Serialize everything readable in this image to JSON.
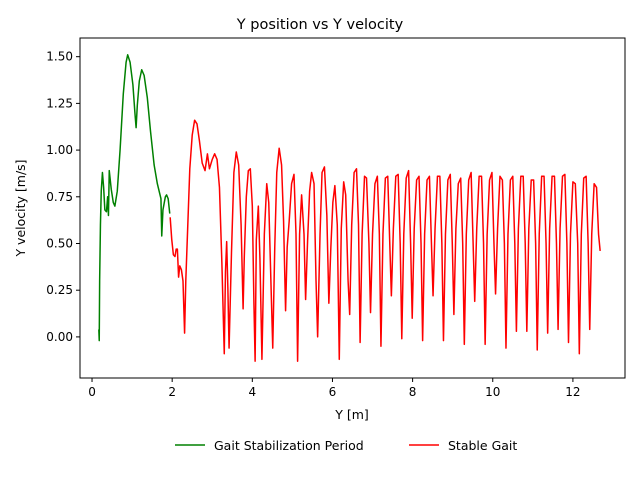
{
  "chart_data": {
    "type": "line",
    "title": "Y position vs Y velocity",
    "xlabel": "Y [m]",
    "ylabel": "Y velocity [m/s]",
    "xlim": [
      -0.3,
      13.3
    ],
    "ylim": [
      -0.22,
      1.6
    ],
    "xticks": [
      0,
      2,
      4,
      6,
      8,
      10,
      12
    ],
    "xtick_labels": [
      "0",
      "2",
      "4",
      "6",
      "8",
      "10",
      "12"
    ],
    "yticks": [
      0.0,
      0.25,
      0.5,
      0.75,
      1.0,
      1.25,
      1.5
    ],
    "ytick_labels": [
      "0.00",
      "0.25",
      "0.50",
      "0.75",
      "1.00",
      "1.25",
      "1.50"
    ],
    "grid": false,
    "legend_position": "bottom-center",
    "series": [
      {
        "name": "Gait Stabilization Period",
        "color": "#008000",
        "points": [
          [
            0.17,
            0.04
          ],
          [
            0.18,
            -0.02
          ],
          [
            0.19,
            0.3
          ],
          [
            0.21,
            0.6
          ],
          [
            0.23,
            0.78
          ],
          [
            0.26,
            0.88
          ],
          [
            0.29,
            0.8
          ],
          [
            0.32,
            0.68
          ],
          [
            0.36,
            0.67
          ],
          [
            0.39,
            0.75
          ],
          [
            0.41,
            0.65
          ],
          [
            0.43,
            0.89
          ],
          [
            0.48,
            0.79
          ],
          [
            0.53,
            0.72
          ],
          [
            0.57,
            0.7
          ],
          [
            0.63,
            0.78
          ],
          [
            0.7,
            1.0
          ],
          [
            0.78,
            1.3
          ],
          [
            0.85,
            1.47
          ],
          [
            0.89,
            1.51
          ],
          [
            0.95,
            1.47
          ],
          [
            1.02,
            1.35
          ],
          [
            1.07,
            1.2
          ],
          [
            1.1,
            1.12
          ],
          [
            1.13,
            1.24
          ],
          [
            1.18,
            1.37
          ],
          [
            1.24,
            1.43
          ],
          [
            1.3,
            1.4
          ],
          [
            1.38,
            1.28
          ],
          [
            1.46,
            1.1
          ],
          [
            1.55,
            0.92
          ],
          [
            1.63,
            0.82
          ],
          [
            1.72,
            0.74
          ],
          [
            1.74,
            0.54
          ],
          [
            1.77,
            0.68
          ],
          [
            1.83,
            0.75
          ],
          [
            1.86,
            0.76
          ],
          [
            1.9,
            0.74
          ],
          [
            1.94,
            0.66
          ]
        ]
      },
      {
        "name": "Stable Gait",
        "color": "#ff0000",
        "points": [
          [
            1.95,
            0.64
          ],
          [
            1.99,
            0.52
          ],
          [
            2.03,
            0.44
          ],
          [
            2.07,
            0.43
          ],
          [
            2.1,
            0.47
          ],
          [
            2.13,
            0.47
          ],
          [
            2.16,
            0.32
          ],
          [
            2.19,
            0.38
          ],
          [
            2.23,
            0.36
          ],
          [
            2.27,
            0.3
          ],
          [
            2.31,
            0.02
          ],
          [
            2.34,
            0.3
          ],
          [
            2.39,
            0.6
          ],
          [
            2.44,
            0.9
          ],
          [
            2.5,
            1.08
          ],
          [
            2.56,
            1.16
          ],
          [
            2.62,
            1.14
          ],
          [
            2.68,
            1.05
          ],
          [
            2.75,
            0.93
          ],
          [
            2.82,
            0.89
          ],
          [
            2.88,
            0.98
          ],
          [
            2.93,
            0.9
          ],
          [
            3.0,
            0.95
          ],
          [
            3.06,
            0.98
          ],
          [
            3.12,
            0.95
          ],
          [
            3.18,
            0.8
          ],
          [
            3.24,
            0.4
          ],
          [
            3.3,
            -0.09
          ],
          [
            3.33,
            0.35
          ],
          [
            3.36,
            0.51
          ],
          [
            3.39,
            0.26
          ],
          [
            3.42,
            -0.06
          ],
          [
            3.48,
            0.45
          ],
          [
            3.54,
            0.88
          ],
          [
            3.6,
            0.99
          ],
          [
            3.66,
            0.92
          ],
          [
            3.72,
            0.6
          ],
          [
            3.77,
            0.15
          ],
          [
            3.8,
            0.43
          ],
          [
            3.85,
            0.75
          ],
          [
            3.9,
            0.89
          ],
          [
            3.95,
            0.9
          ],
          [
            4.0,
            0.7
          ],
          [
            4.04,
            0.18
          ],
          [
            4.07,
            -0.13
          ],
          [
            4.1,
            0.52
          ],
          [
            4.15,
            0.7
          ],
          [
            4.19,
            0.42
          ],
          [
            4.24,
            -0.12
          ],
          [
            4.3,
            0.55
          ],
          [
            4.36,
            0.82
          ],
          [
            4.41,
            0.72
          ],
          [
            4.47,
            0.25
          ],
          [
            4.51,
            -0.06
          ],
          [
            4.56,
            0.48
          ],
          [
            4.61,
            0.88
          ],
          [
            4.67,
            1.01
          ],
          [
            4.73,
            0.92
          ],
          [
            4.78,
            0.62
          ],
          [
            4.83,
            0.14
          ],
          [
            4.87,
            0.48
          ],
          [
            4.92,
            0.62
          ],
          [
            4.98,
            0.82
          ],
          [
            5.04,
            0.87
          ],
          [
            5.09,
            0.55
          ],
          [
            5.13,
            -0.13
          ],
          [
            5.18,
            0.55
          ],
          [
            5.23,
            0.76
          ],
          [
            5.29,
            0.55
          ],
          [
            5.33,
            0.2
          ],
          [
            5.38,
            0.52
          ],
          [
            5.43,
            0.78
          ],
          [
            5.48,
            0.88
          ],
          [
            5.54,
            0.82
          ],
          [
            5.59,
            0.3
          ],
          [
            5.63,
            0.0
          ],
          [
            5.69,
            0.55
          ],
          [
            5.74,
            0.88
          ],
          [
            5.8,
            0.91
          ],
          [
            5.86,
            0.65
          ],
          [
            5.91,
            0.18
          ],
          [
            5.96,
            0.48
          ],
          [
            6.01,
            0.72
          ],
          [
            6.06,
            0.81
          ],
          [
            6.12,
            0.6
          ],
          [
            6.17,
            -0.12
          ],
          [
            6.22,
            0.58
          ],
          [
            6.28,
            0.83
          ],
          [
            6.33,
            0.76
          ],
          [
            6.39,
            0.3
          ],
          [
            6.43,
            0.12
          ],
          [
            6.48,
            0.6
          ],
          [
            6.54,
            0.88
          ],
          [
            6.6,
            0.9
          ],
          [
            6.65,
            0.6
          ],
          [
            6.69,
            -0.03
          ],
          [
            6.74,
            0.55
          ],
          [
            6.8,
            0.86
          ],
          [
            6.85,
            0.85
          ],
          [
            6.91,
            0.5
          ],
          [
            6.95,
            0.13
          ],
          [
            7.0,
            0.55
          ],
          [
            7.06,
            0.82
          ],
          [
            7.12,
            0.86
          ],
          [
            7.17,
            0.55
          ],
          [
            7.21,
            -0.05
          ],
          [
            7.26,
            0.55
          ],
          [
            7.32,
            0.85
          ],
          [
            7.38,
            0.86
          ],
          [
            7.43,
            0.5
          ],
          [
            7.47,
            0.22
          ],
          [
            7.52,
            0.58
          ],
          [
            7.58,
            0.86
          ],
          [
            7.64,
            0.87
          ],
          [
            7.69,
            0.5
          ],
          [
            7.73,
            -0.01
          ],
          [
            7.78,
            0.55
          ],
          [
            7.84,
            0.85
          ],
          [
            7.9,
            0.89
          ],
          [
            7.95,
            0.5
          ],
          [
            7.99,
            0.1
          ],
          [
            8.04,
            0.58
          ],
          [
            8.1,
            0.84
          ],
          [
            8.16,
            0.86
          ],
          [
            8.21,
            0.5
          ],
          [
            8.25,
            -0.02
          ],
          [
            8.3,
            0.55
          ],
          [
            8.36,
            0.84
          ],
          [
            8.42,
            0.86
          ],
          [
            8.47,
            0.5
          ],
          [
            8.51,
            0.22
          ],
          [
            8.56,
            0.58
          ],
          [
            8.62,
            0.86
          ],
          [
            8.68,
            0.86
          ],
          [
            8.73,
            0.5
          ],
          [
            8.77,
            -0.02
          ],
          [
            8.82,
            0.55
          ],
          [
            8.88,
            0.84
          ],
          [
            8.94,
            0.87
          ],
          [
            8.99,
            0.5
          ],
          [
            9.03,
            0.12
          ],
          [
            9.08,
            0.58
          ],
          [
            9.14,
            0.82
          ],
          [
            9.2,
            0.85
          ],
          [
            9.25,
            0.5
          ],
          [
            9.29,
            -0.04
          ],
          [
            9.34,
            0.55
          ],
          [
            9.4,
            0.84
          ],
          [
            9.46,
            0.88
          ],
          [
            9.51,
            0.5
          ],
          [
            9.55,
            0.19
          ],
          [
            9.6,
            0.58
          ],
          [
            9.66,
            0.86
          ],
          [
            9.72,
            0.86
          ],
          [
            9.77,
            0.5
          ],
          [
            9.81,
            -0.04
          ],
          [
            9.86,
            0.55
          ],
          [
            9.92,
            0.84
          ],
          [
            9.98,
            0.88
          ],
          [
            10.03,
            0.5
          ],
          [
            10.07,
            0.23
          ],
          [
            10.12,
            0.58
          ],
          [
            10.18,
            0.86
          ],
          [
            10.24,
            0.84
          ],
          [
            10.29,
            0.5
          ],
          [
            10.33,
            -0.06
          ],
          [
            10.38,
            0.55
          ],
          [
            10.44,
            0.84
          ],
          [
            10.5,
            0.86
          ],
          [
            10.55,
            0.5
          ],
          [
            10.59,
            0.03
          ],
          [
            10.64,
            0.58
          ],
          [
            10.7,
            0.86
          ],
          [
            10.76,
            0.86
          ],
          [
            10.81,
            0.5
          ],
          [
            10.85,
            0.03
          ],
          [
            10.9,
            0.58
          ],
          [
            10.96,
            0.84
          ],
          [
            11.02,
            0.84
          ],
          [
            11.07,
            0.5
          ],
          [
            11.11,
            -0.07
          ],
          [
            11.16,
            0.55
          ],
          [
            11.22,
            0.86
          ],
          [
            11.28,
            0.86
          ],
          [
            11.33,
            0.5
          ],
          [
            11.37,
            0.02
          ],
          [
            11.42,
            0.58
          ],
          [
            11.48,
            0.86
          ],
          [
            11.54,
            0.86
          ],
          [
            11.59,
            0.5
          ],
          [
            11.63,
            0.04
          ],
          [
            11.68,
            0.58
          ],
          [
            11.74,
            0.86
          ],
          [
            11.8,
            0.87
          ],
          [
            11.85,
            0.5
          ],
          [
            11.89,
            -0.03
          ],
          [
            11.94,
            0.55
          ],
          [
            12.0,
            0.83
          ],
          [
            12.06,
            0.82
          ],
          [
            12.12,
            0.5
          ],
          [
            12.16,
            -0.09
          ],
          [
            12.21,
            0.55
          ],
          [
            12.27,
            0.85
          ],
          [
            12.33,
            0.86
          ],
          [
            12.38,
            0.5
          ],
          [
            12.42,
            0.04
          ],
          [
            12.47,
            0.55
          ],
          [
            12.53,
            0.82
          ],
          [
            12.59,
            0.8
          ],
          [
            12.64,
            0.55
          ],
          [
            12.68,
            0.46
          ]
        ]
      }
    ]
  }
}
